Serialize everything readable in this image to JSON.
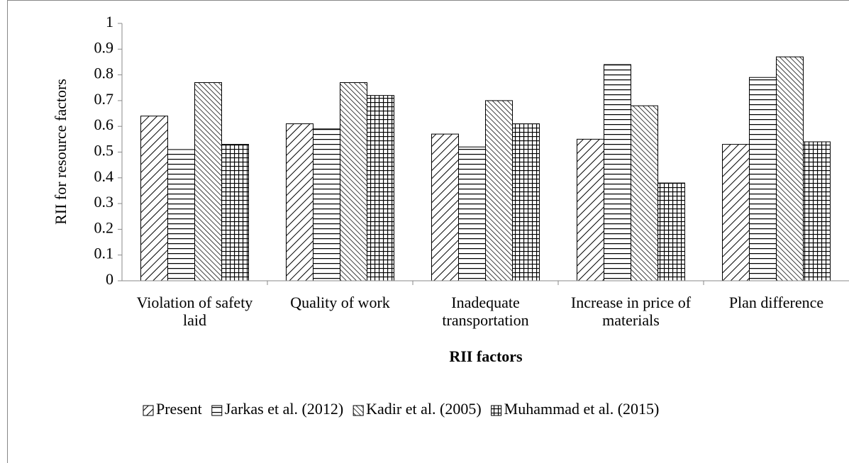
{
  "chart_data": {
    "type": "bar",
    "y_label": "RII for resource factors",
    "x_label": "RII factors",
    "categories": [
      "Violation of safety laid",
      "Quality of work",
      "Inadequate transportation",
      "Increase in price of materials",
      "Plan difference"
    ],
    "series": [
      {
        "name": "Present",
        "color": "#000000",
        "pattern": "diagonal-down",
        "values": [
          0.64,
          0.61,
          0.57,
          0.55,
          0.53
        ]
      },
      {
        "name": "Jarkas et al. (2012)",
        "color": "#000000",
        "pattern": "horizontal",
        "values": [
          0.51,
          0.59,
          0.52,
          0.84,
          0.79
        ]
      },
      {
        "name": "Kadir et al. (2005)",
        "color": "#000000",
        "pattern": "diagonal-up",
        "values": [
          0.77,
          0.77,
          0.7,
          0.68,
          0.87
        ]
      },
      {
        "name": "Muhammad et al. (2015)",
        "color": "#000000",
        "pattern": "grid",
        "values": [
          0.53,
          0.72,
          0.61,
          0.38,
          0.54
        ]
      }
    ],
    "ylim": [
      0,
      1
    ],
    "yticks": [
      0,
      0.1,
      0.2,
      0.3,
      0.4,
      0.5,
      0.6,
      0.7,
      0.8,
      0.9,
      1
    ],
    "legend": "bottom"
  }
}
